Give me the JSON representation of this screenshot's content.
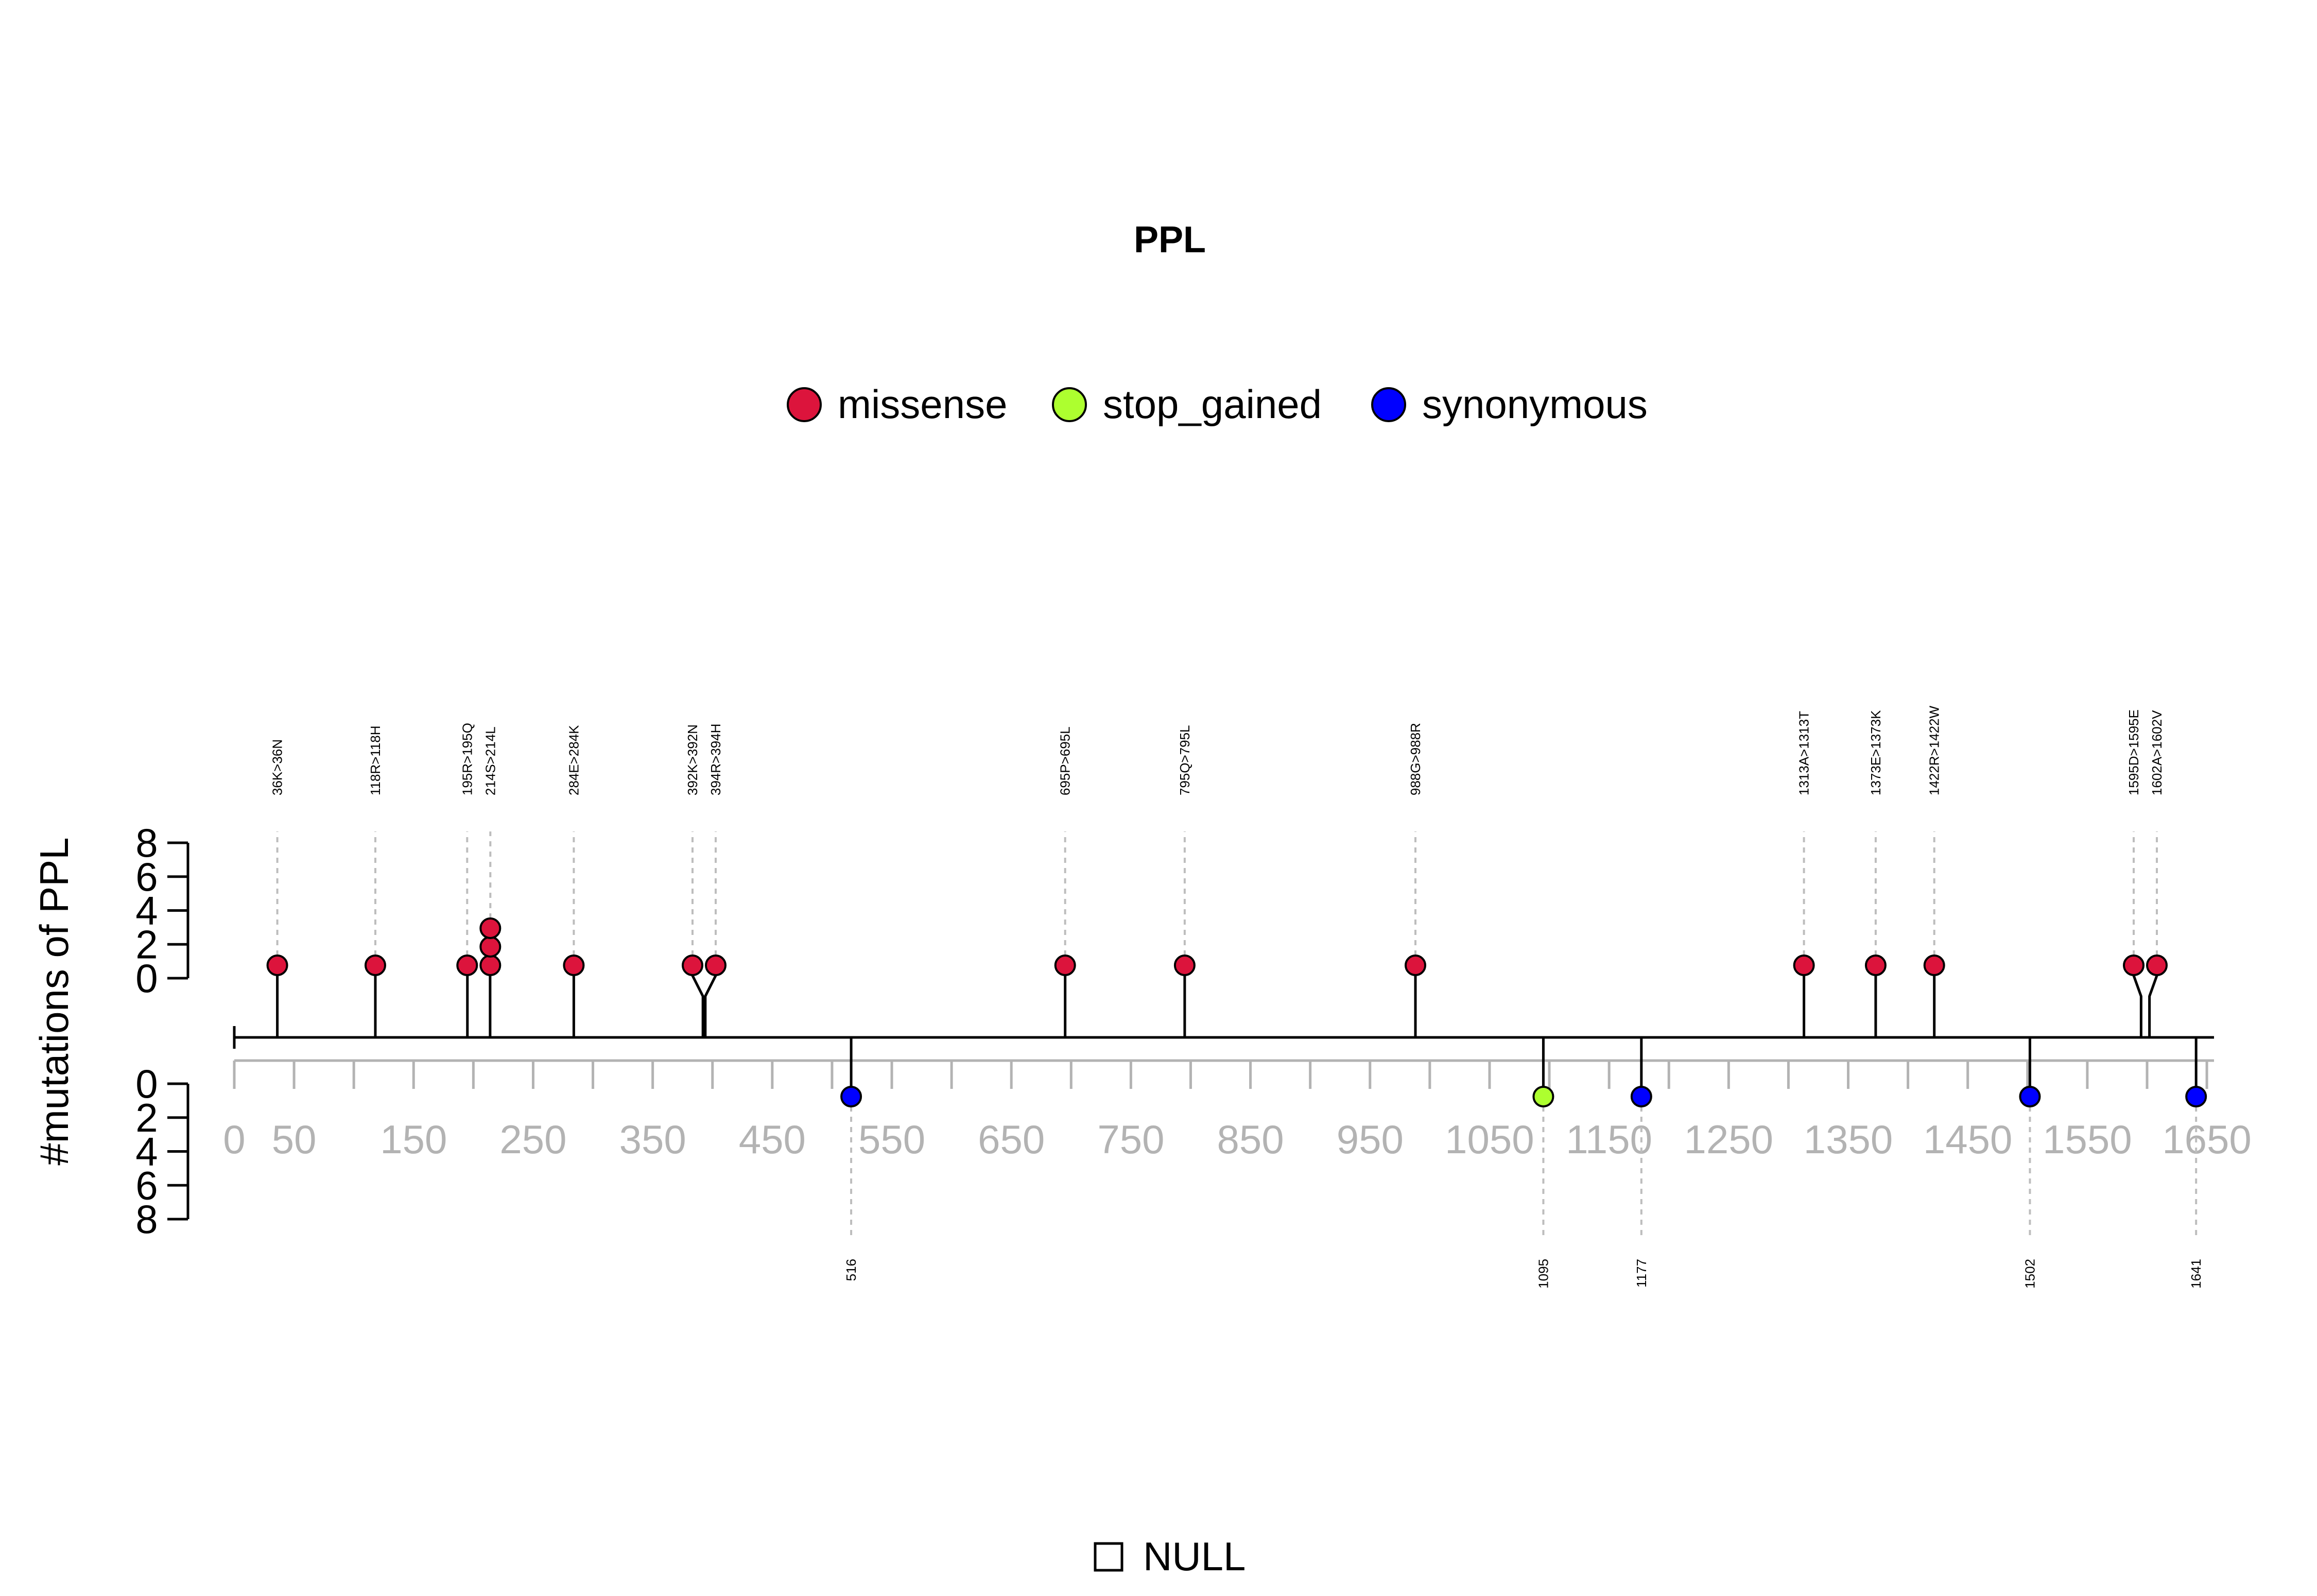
{
  "chart_data": {
    "type": "lollipop",
    "title": "PPL",
    "ylabel": "#mutations of PPL",
    "protein_length": 1656,
    "xlim": [
      0,
      1656
    ],
    "x_ticks": [
      0,
      50,
      150,
      250,
      350,
      450,
      550,
      650,
      750,
      850,
      950,
      1050,
      1150,
      1250,
      1350,
      1450,
      1550,
      1650
    ],
    "y_ticks_top": [
      "8",
      "6",
      "4",
      "2",
      "0"
    ],
    "y_ticks_bottom": [
      "0",
      "2",
      "4",
      "6",
      "8"
    ],
    "ylim": [
      0,
      8
    ],
    "legend": [
      {
        "label": "missense",
        "color": "#DC143C"
      },
      {
        "label": "stop_gained",
        "color": "#ADFF2F"
      },
      {
        "label": "synonymous",
        "color": "#0000FF"
      }
    ],
    "legend_position": "top",
    "footer_label": "NULL",
    "mutations_top": [
      {
        "pos": 36,
        "label": "36K>36N",
        "type": "missense",
        "count": 1
      },
      {
        "pos": 118,
        "label": "118R>118H",
        "type": "missense",
        "count": 1
      },
      {
        "pos": 195,
        "label": "195R>195Q",
        "type": "missense",
        "count": 1
      },
      {
        "pos": 214,
        "label": "214S>214L",
        "type": "missense",
        "count": 3
      },
      {
        "pos": 284,
        "label": "284E>284K",
        "type": "missense",
        "count": 1
      },
      {
        "pos": 392,
        "label": "392K>392N",
        "type": "missense",
        "count": 1
      },
      {
        "pos": 394,
        "label": "394R>394H",
        "type": "missense",
        "count": 1
      },
      {
        "pos": 695,
        "label": "695P>695L",
        "type": "missense",
        "count": 1
      },
      {
        "pos": 795,
        "label": "795Q>795L",
        "type": "missense",
        "count": 1
      },
      {
        "pos": 988,
        "label": "988G>988R",
        "type": "missense",
        "count": 1
      },
      {
        "pos": 1313,
        "label": "1313A>1313T",
        "type": "missense",
        "count": 1
      },
      {
        "pos": 1373,
        "label": "1373E>1373K",
        "type": "missense",
        "count": 1
      },
      {
        "pos": 1422,
        "label": "1422R>1422W",
        "type": "missense",
        "count": 1
      },
      {
        "pos": 1595,
        "label": "1595D>1595E",
        "type": "missense",
        "count": 1
      },
      {
        "pos": 1602,
        "label": "1602A>1602V",
        "type": "missense",
        "count": 1
      }
    ],
    "mutations_bottom": [
      {
        "pos": 516,
        "label": "516",
        "type": "synonymous",
        "count": 1
      },
      {
        "pos": 1095,
        "label": "1095",
        "type": "stop_gained",
        "count": 1
      },
      {
        "pos": 1177,
        "label": "1177",
        "type": "synonymous",
        "count": 1
      },
      {
        "pos": 1502,
        "label": "1502",
        "type": "synonymous",
        "count": 1
      },
      {
        "pos": 1641,
        "label": "1641",
        "type": "synonymous",
        "count": 1
      }
    ]
  }
}
